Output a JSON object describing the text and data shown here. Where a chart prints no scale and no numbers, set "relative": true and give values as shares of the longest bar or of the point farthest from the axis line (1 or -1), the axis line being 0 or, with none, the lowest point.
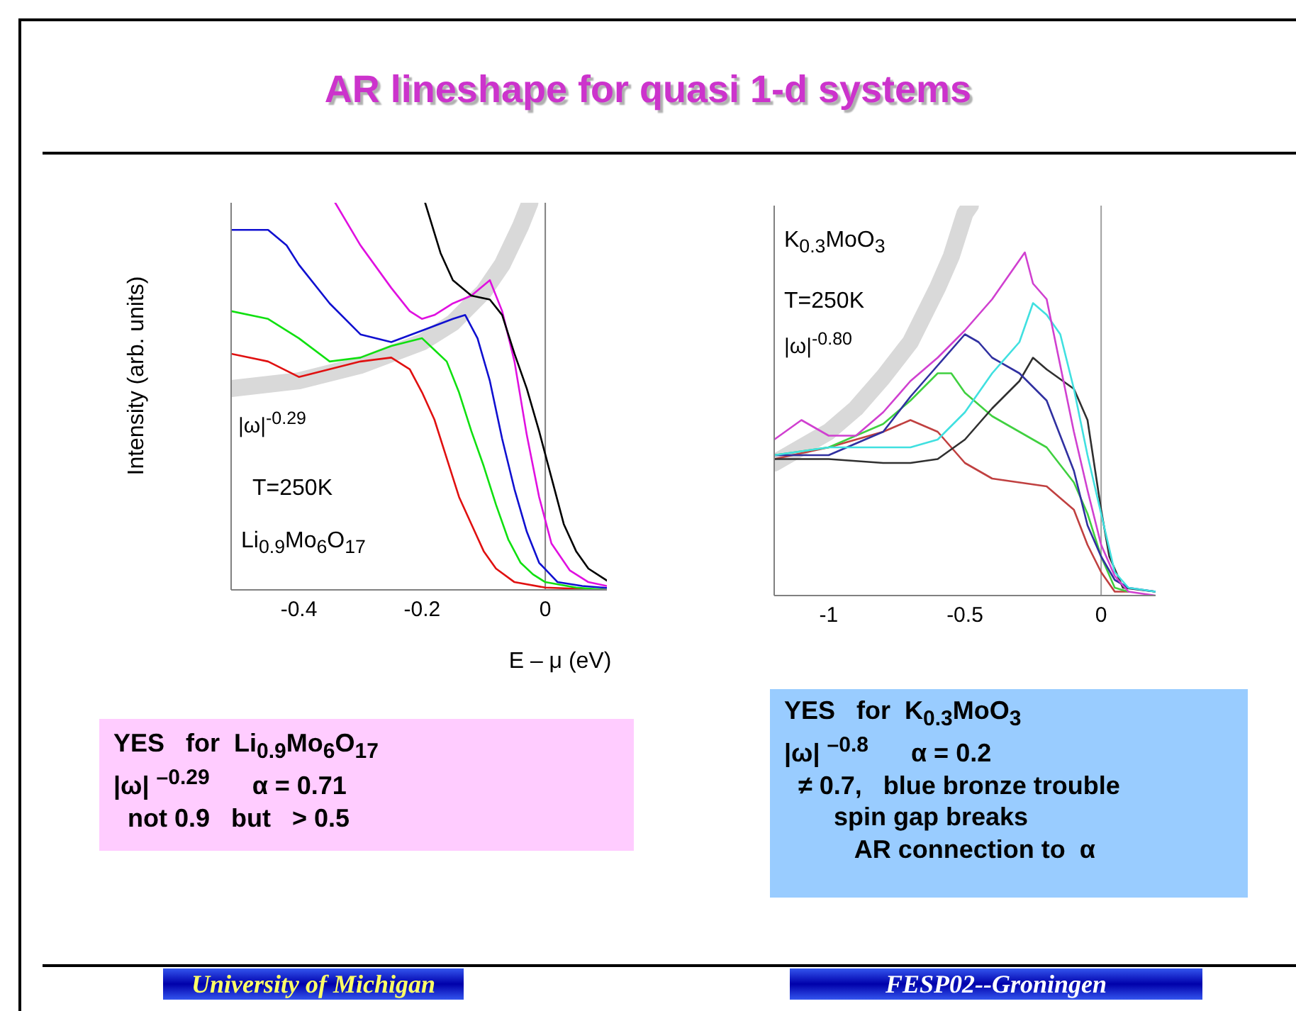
{
  "chart_data": [
    {
      "type": "line",
      "title": "AR lineshape for quasi 1-d systems",
      "xlabel": "E – μ (eV)",
      "ylabel": "Intensity (arb. units)",
      "relative": true,
      "xlim": [
        -0.51,
        0.1
      ],
      "xticks": [
        -0.4,
        -0.2,
        0
      ],
      "ref_lines": [
        {
          "axis": "x",
          "value": 0,
          "color": "#808080"
        }
      ],
      "series": [
        {
          "color": "#d9d9d9",
          "x": [
            -0.51,
            -0.4,
            -0.3,
            -0.2,
            -0.15,
            -0.1,
            -0.07,
            -0.04,
            -0.025
          ],
          "values": [
            0.52,
            0.54,
            0.58,
            0.64,
            0.69,
            0.77,
            0.84,
            0.94,
            1
          ]
        },
        {
          "color": "#e01010",
          "x": [
            -0.51,
            -0.45,
            -0.4,
            -0.35,
            -0.3,
            -0.25,
            -0.22,
            -0.2,
            -0.18,
            -0.16,
            -0.14,
            -0.12,
            -0.1,
            -0.08,
            -0.05,
            0,
            0.1
          ],
          "values": [
            0.61,
            0.59,
            0.55,
            0.57,
            0.59,
            0.6,
            0.57,
            0.51,
            0.44,
            0.34,
            0.24,
            0.17,
            0.1,
            0.055,
            0.02,
            0.006,
            0
          ]
        },
        {
          "color": "#10e010",
          "x": [
            -0.51,
            -0.45,
            -0.4,
            -0.35,
            -0.3,
            -0.25,
            -0.2,
            -0.18,
            -0.16,
            -0.14,
            -0.12,
            -0.1,
            -0.08,
            -0.06,
            -0.04,
            -0.02,
            0,
            0.05,
            0.1
          ],
          "values": [
            0.72,
            0.7,
            0.65,
            0.59,
            0.6,
            0.63,
            0.65,
            0.62,
            0.59,
            0.51,
            0.41,
            0.32,
            0.22,
            0.13,
            0.07,
            0.04,
            0.02,
            0.006,
            0
          ]
        },
        {
          "color": "#1010d0",
          "x": [
            -0.51,
            -0.45,
            -0.42,
            -0.4,
            -0.35,
            -0.3,
            -0.25,
            -0.2,
            -0.15,
            -0.13,
            -0.11,
            -0.09,
            -0.07,
            -0.05,
            -0.03,
            -0.01,
            0.02,
            0.06,
            0.1
          ],
          "values": [
            0.93,
            0.93,
            0.89,
            0.84,
            0.74,
            0.66,
            0.64,
            0.67,
            0.7,
            0.71,
            0.65,
            0.54,
            0.39,
            0.26,
            0.15,
            0.07,
            0.02,
            0.01,
            0.005
          ]
        },
        {
          "color": "#e010e0",
          "x": [
            -0.341,
            -0.3,
            -0.25,
            -0.22,
            -0.2,
            -0.18,
            -0.15,
            -0.12,
            -0.09,
            -0.07,
            -0.05,
            -0.03,
            -0.01,
            0.01,
            0.04,
            0.07,
            0.1
          ],
          "values": [
            1,
            0.89,
            0.78,
            0.72,
            0.7,
            0.71,
            0.74,
            0.76,
            0.8,
            0.72,
            0.59,
            0.4,
            0.24,
            0.12,
            0.05,
            0.02,
            0.01
          ]
        },
        {
          "color": "#000000",
          "x": [
            -0.195,
            -0.17,
            -0.15,
            -0.12,
            -0.09,
            -0.07,
            -0.05,
            -0.03,
            -0.01,
            0.01,
            0.03,
            0.05,
            0.07,
            0.1
          ],
          "values": [
            1,
            0.87,
            0.8,
            0.76,
            0.75,
            0.71,
            0.61,
            0.52,
            0.41,
            0.29,
            0.17,
            0.1,
            0.055,
            0.024
          ]
        }
      ],
      "annotations": [
        "|ω|$^{-0.29}$",
        "T=250K",
        "Li$_{0.9}$Mo$_{6}$O$_{17}$",
        "YES   for  Li$_{0.9}$Mo$_{6}$O$_{17}$\n|ω| $^{–0.29}$      α = 0.71\n  not 0.9   but   > 0.5",
        "University of Michigan"
      ]
    },
    {
      "type": "line",
      "relative": true,
      "xlim": [
        -1.2,
        0.2
      ],
      "xticks": [
        -1,
        -0.5,
        0
      ],
      "ref_lines": [
        {
          "axis": "x",
          "value": 0,
          "color": "#a0a0a0"
        }
      ],
      "series": [
        {
          "color": "#d9d9d9",
          "x": [
            -1.2,
            -1.1,
            -1,
            -0.9,
            -0.8,
            -0.7,
            -0.6,
            -0.55,
            -0.5,
            -0.48
          ],
          "values": [
            0.34,
            0.38,
            0.42,
            0.48,
            0.56,
            0.65,
            0.79,
            0.87,
            0.98,
            1
          ]
        },
        {
          "color": "#c04040",
          "x": [
            -1.2,
            -1,
            -0.8,
            -0.7,
            -0.6,
            -0.5,
            -0.4,
            -0.3,
            -0.2,
            -0.1,
            -0.05,
            0,
            0.05,
            0.1
          ],
          "values": [
            0.35,
            0.38,
            0.42,
            0.45,
            0.42,
            0.34,
            0.3,
            0.29,
            0.28,
            0.22,
            0.13,
            0.06,
            0.01,
            0.01
          ]
        },
        {
          "color": "#40d040",
          "x": [
            -1.2,
            -1,
            -0.8,
            -0.7,
            -0.6,
            -0.55,
            -0.5,
            -0.4,
            -0.3,
            -0.2,
            -0.1,
            -0.05,
            0,
            0.05,
            0.1
          ],
          "values": [
            0.36,
            0.38,
            0.44,
            0.5,
            0.57,
            0.57,
            0.52,
            0.46,
            0.42,
            0.38,
            0.29,
            0.21,
            0.1,
            0.02,
            0.01
          ]
        },
        {
          "color": "#303030",
          "x": [
            -1.2,
            -1,
            -0.8,
            -0.7,
            -0.6,
            -0.5,
            -0.4,
            -0.3,
            -0.25,
            -0.2,
            -0.1,
            -0.05,
            0,
            0.03,
            0.08,
            0.2
          ],
          "values": [
            0.35,
            0.35,
            0.34,
            0.34,
            0.35,
            0.4,
            0.48,
            0.55,
            0.61,
            0.58,
            0.53,
            0.45,
            0.22,
            0.1,
            0.02,
            0.01
          ]
        },
        {
          "color": "#3030a0",
          "x": [
            -1.2,
            -1,
            -0.8,
            -0.7,
            -0.6,
            -0.5,
            -0.45,
            -0.4,
            -0.3,
            -0.2,
            -0.15,
            -0.1,
            -0.05,
            0,
            0.05,
            0.1,
            0.2
          ],
          "values": [
            0.36,
            0.36,
            0.42,
            0.51,
            0.59,
            0.67,
            0.65,
            0.61,
            0.57,
            0.5,
            0.41,
            0.32,
            0.18,
            0.1,
            0.04,
            0.02,
            0.01
          ]
        },
        {
          "color": "#40e0e0",
          "x": [
            -1.2,
            -1,
            -0.8,
            -0.7,
            -0.6,
            -0.5,
            -0.4,
            -0.3,
            -0.25,
            -0.2,
            -0.15,
            -0.1,
            -0.05,
            0,
            0.05,
            0.1,
            0.2
          ],
          "values": [
            0.36,
            0.38,
            0.38,
            0.38,
            0.4,
            0.47,
            0.57,
            0.65,
            0.75,
            0.72,
            0.67,
            0.53,
            0.36,
            0.21,
            0.06,
            0.02,
            0.01
          ]
        },
        {
          "color": "#d040d0",
          "x": [
            -1.2,
            -1.1,
            -1,
            -0.9,
            -0.8,
            -0.7,
            -0.6,
            -0.5,
            -0.4,
            -0.35,
            -0.3,
            -0.28,
            -0.25,
            -0.2,
            -0.15,
            -0.1,
            -0.05,
            0,
            0.05,
            0.1,
            0.2
          ],
          "values": [
            0.4,
            0.45,
            0.41,
            0.41,
            0.47,
            0.55,
            0.61,
            0.68,
            0.76,
            0.81,
            0.86,
            0.88,
            0.8,
            0.76,
            0.59,
            0.42,
            0.27,
            0.13,
            0.05,
            0.01,
            0
          ]
        }
      ],
      "annotations": [
        "K$_{0.3}$MoO$_{3}$",
        "T=250K",
        "|ω|$^{-0.80}$",
        "YES   for  K$_{0.3}$MoO$_{3}$\n|ω| $^{–0.8}$      α = 0.2\n  ≠ 0.7,   blue bronze trouble\n       spin gap breaks\n          AR connection to  α",
        "FESP02--Groningen"
      ]
    }
  ]
}
